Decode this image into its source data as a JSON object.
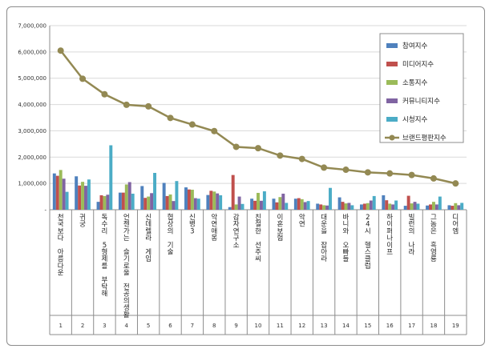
{
  "chart_data": {
    "type": "bar",
    "y_ticks": [
      "7,000,000",
      "6,000,000",
      "5,000,000",
      "4,000,000",
      "3,000,000",
      "2,000,000",
      "1,000,000",
      "-"
    ],
    "ylim": [
      0,
      7000000
    ],
    "grid": true,
    "legend_position": "top-right",
    "categories": [
      "천국보다 아름다운",
      "귀궁",
      "독수리 5형제를 부탁해",
      "언젠가는 슬기로울 전공의생활",
      "신데렐라 게임",
      "협상의 기술",
      "신병3",
      "악연애몽",
      "감자연구소",
      "친절한 선주씨",
      "이혼보험",
      "악연",
      "대운을 잡아라",
      "바니와 오빠들",
      "24시 헬스클럽",
      "하이퍼나이프",
      "빌런의 나라",
      "그놈은 흑염룡",
      "디어엠"
    ],
    "numbers": [
      "1",
      "2",
      "3",
      "4",
      "5",
      "6",
      "7",
      "8",
      "9",
      "10",
      "11",
      "12",
      "13",
      "14",
      "15",
      "16",
      "17",
      "18",
      "19"
    ],
    "series": [
      {
        "name": "참여지수",
        "kind": "bar",
        "color": "#4f81bd",
        "values": [
          1380000,
          1270000,
          300000,
          650000,
          900000,
          1020000,
          850000,
          560000,
          100000,
          420000,
          420000,
          420000,
          230000,
          470000,
          200000,
          550000,
          150000,
          160000,
          170000
        ]
      },
      {
        "name": "미디어지수",
        "kind": "bar",
        "color": "#c0504d",
        "values": [
          1290000,
          920000,
          550000,
          650000,
          450000,
          520000,
          770000,
          720000,
          1320000,
          340000,
          280000,
          440000,
          200000,
          300000,
          230000,
          360000,
          530000,
          200000,
          150000
        ]
      },
      {
        "name": "소통지수",
        "kind": "bar",
        "color": "#9bbb59",
        "values": [
          1510000,
          1060000,
          520000,
          960000,
          500000,
          580000,
          760000,
          690000,
          200000,
          640000,
          480000,
          400000,
          170000,
          240000,
          250000,
          230000,
          240000,
          300000,
          250000
        ]
      },
      {
        "name": "커뮤니티지수",
        "kind": "bar",
        "color": "#8064a2",
        "values": [
          1180000,
          910000,
          570000,
          1050000,
          630000,
          330000,
          440000,
          620000,
          500000,
          340000,
          610000,
          290000,
          160000,
          260000,
          350000,
          200000,
          300000,
          200000,
          170000
        ]
      },
      {
        "name": "시청지수",
        "kind": "bar",
        "color": "#4bacc6",
        "values": [
          680000,
          1150000,
          2450000,
          610000,
          1400000,
          1090000,
          420000,
          550000,
          220000,
          700000,
          260000,
          330000,
          830000,
          170000,
          520000,
          350000,
          230000,
          500000,
          260000
        ]
      },
      {
        "name": "브랜드평판지수",
        "kind": "line",
        "color": "#938953",
        "values": [
          6050000,
          4980000,
          4390000,
          3990000,
          3930000,
          3490000,
          3240000,
          2990000,
          2390000,
          2340000,
          2060000,
          1930000,
          1600000,
          1520000,
          1420000,
          1380000,
          1320000,
          1190000,
          1000000
        ]
      }
    ]
  }
}
